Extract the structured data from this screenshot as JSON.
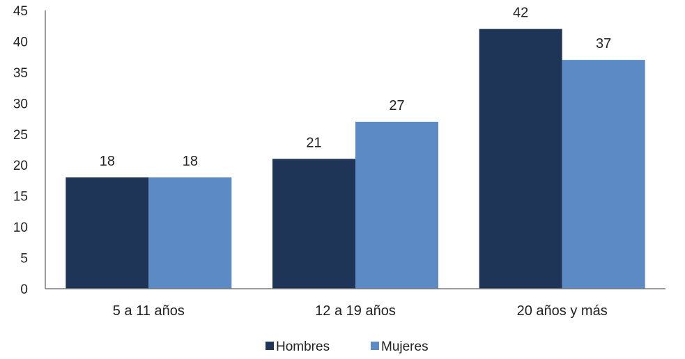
{
  "chart_data": {
    "type": "bar",
    "categories": [
      "5 a 11 años",
      "12 a 19 años",
      "20 años y más"
    ],
    "series": [
      {
        "name": "Hombres",
        "values": [
          18,
          21,
          42
        ],
        "color": "#1f3557"
      },
      {
        "name": "Mujeres",
        "values": [
          18,
          27,
          37
        ],
        "color": "#5b8ac5"
      }
    ],
    "y_ticks": [
      0,
      5,
      10,
      15,
      20,
      25,
      30,
      35,
      40,
      45
    ],
    "ylim": [
      0,
      45
    ],
    "grid": false,
    "legend_position": "bottom-center",
    "data_labels": true
  }
}
